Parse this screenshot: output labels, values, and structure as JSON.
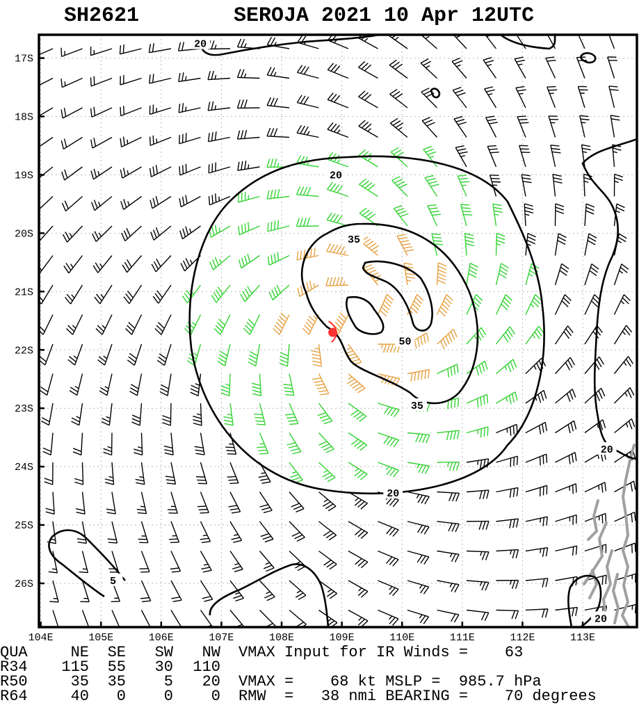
{
  "header": {
    "storm_id": "SH2621",
    "title": "SEROJA 2021 10 Apr 12UTC"
  },
  "chart_data": {
    "type": "wind-barb contour map",
    "x_ticks": [
      "104E",
      "105E",
      "106E",
      "107E",
      "108E",
      "109E",
      "110E",
      "111E",
      "112E",
      "113E"
    ],
    "y_ticks": [
      "17S",
      "18S",
      "19S",
      "20S",
      "21S",
      "22S",
      "23S",
      "24S",
      "25S",
      "26S"
    ],
    "xlim": [
      103.97,
      113.9
    ],
    "ylim": [
      -26.75,
      -16.6
    ],
    "contour_levels": [
      5,
      20,
      35,
      50
    ],
    "contour_labels": [
      {
        "text": "20",
        "lon": 106.65,
        "lat": -16.75
      },
      {
        "text": "20",
        "lon": 108.9,
        "lat": -19.0
      },
      {
        "text": "35",
        "lon": 109.2,
        "lat": -20.1
      },
      {
        "text": "50",
        "lon": 110.05,
        "lat": -21.85
      },
      {
        "text": "35",
        "lon": 110.25,
        "lat": -22.95
      },
      {
        "text": "20",
        "lon": 109.85,
        "lat": -24.45
      },
      {
        "text": "20",
        "lon": 113.4,
        "lat": -23.7
      },
      {
        "text": "5",
        "lon": 105.2,
        "lat": -25.95
      },
      {
        "text": "20",
        "lon": 113.3,
        "lat": -26.6
      }
    ],
    "storm_center": {
      "lon": 108.85,
      "lat": -21.7
    },
    "barb_colors": {
      "below_34kt": "#000000",
      "34_to_50kt": "#32d232",
      "50_to_64kt": "#e6a042",
      "64kt_plus": "#f08c50"
    },
    "contour_color": "#000000",
    "coastline_color": "#a0a0a0",
    "storm_symbol_color": "#ff3030"
  },
  "footer": {
    "rows": [
      {
        "label": "QUA",
        "ne": "NE",
        "se": "SE",
        "sw": "SW",
        "nw": "NW",
        "text": "VMAX Input for IR Winds =    63"
      },
      {
        "label": "R34",
        "ne": "115",
        "se": "55",
        "sw": "30",
        "nw": "110",
        "text": ""
      },
      {
        "label": "R50",
        "ne": "35",
        "se": "35",
        "sw": "5",
        "nw": "20",
        "text": "VMAX =    68 kt MSLP =  985.7 hPa"
      },
      {
        "label": "R64",
        "ne": "40",
        "se": "0",
        "sw": "0",
        "nw": "0",
        "text": "RMW  =   38 nmi BEARING =    70 degrees"
      }
    ]
  }
}
